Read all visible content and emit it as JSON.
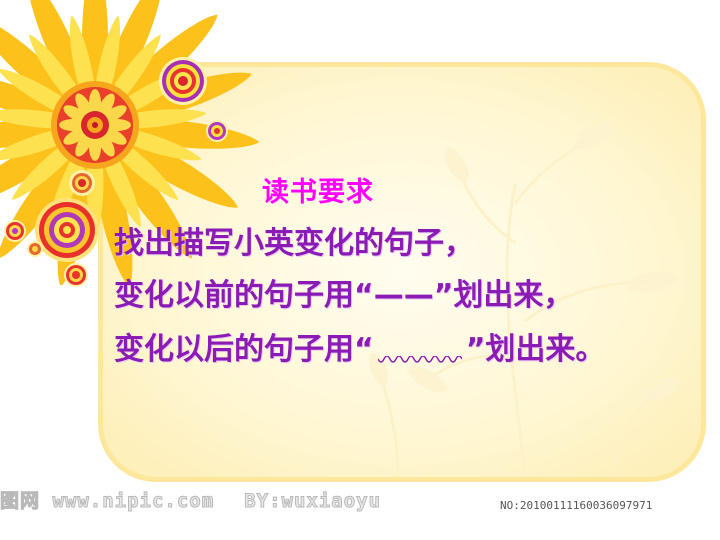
{
  "slide": {
    "heading": "读书要求",
    "line1": "找出描写小英变化的句子，",
    "line2_prefix": "变化以前的句子用“",
    "line2_mark": "——",
    "line2_suffix": "”划出来，",
    "line3_prefix": "变化以后的句子用“",
    "line3_suffix": "”划出来。"
  },
  "watermark": {
    "site_prefix": "图网",
    "site_url": "www.nipic.com",
    "author": "BY:wuxiaoyu",
    "serial": "NO:20100111160036097971"
  },
  "colors": {
    "heading": "#ff00ff",
    "body_text": "#8a1bb5",
    "card_border": "#fde79b",
    "card_fill": "#fff6d2",
    "petal_outer": "#fcc21b",
    "petal_inner": "#fde14f"
  },
  "icons": {
    "flower": "sunflower-icon",
    "rings": "concentric-circle-icon",
    "plant": "plant-silhouette-icon"
  }
}
